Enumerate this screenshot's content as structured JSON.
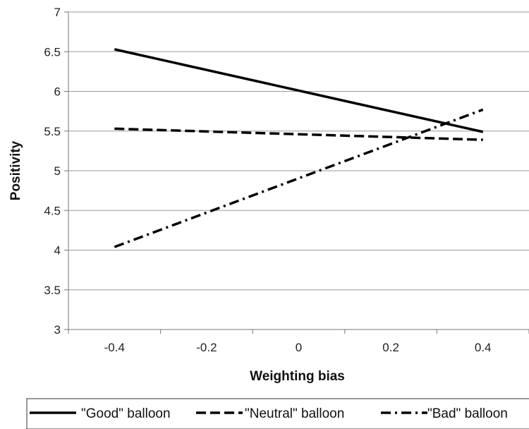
{
  "chart_data": {
    "type": "line",
    "title": "",
    "xlabel": "Weighting bias",
    "ylabel": "Positivity",
    "x": [
      -0.4,
      0.4
    ],
    "x_ticks": [
      "-0.4",
      "-0.2",
      "0",
      "0.2",
      "0.4"
    ],
    "x_tick_values": [
      -0.4,
      -0.2,
      0,
      0.2,
      0.4
    ],
    "y_ticks": [
      "3",
      "3.5",
      "4",
      "4.5",
      "5",
      "5.5",
      "6",
      "6.5",
      "7"
    ],
    "y_tick_values": [
      3,
      3.5,
      4,
      4.5,
      5,
      5.5,
      6,
      6.5,
      7
    ],
    "xlim": [
      -0.5,
      0.5
    ],
    "ylim": [
      3,
      7
    ],
    "grid": "horizontal",
    "legend_position": "bottom",
    "series": [
      {
        "name": "\"Good\" balloon",
        "values": [
          6.53,
          5.49
        ],
        "dash": "solid"
      },
      {
        "name": "\"Neutral\" balloon",
        "values": [
          5.53,
          5.39
        ],
        "dash": "dashed"
      },
      {
        "name": "\"Bad\" balloon",
        "values": [
          4.04,
          5.77
        ],
        "dash": "dash-dot"
      }
    ]
  }
}
